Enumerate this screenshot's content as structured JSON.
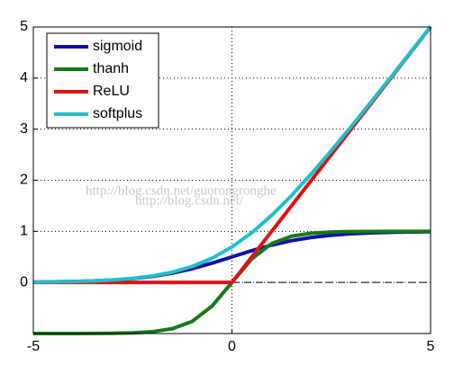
{
  "chart_data": {
    "type": "line",
    "x": [
      -5,
      -4.5,
      -4,
      -3.5,
      -3,
      -2.5,
      -2,
      -1.5,
      -1,
      -0.5,
      0,
      0.5,
      1,
      1.5,
      2,
      2.5,
      3,
      3.5,
      4,
      4.5,
      5
    ],
    "series": [
      {
        "name": "sigmoid",
        "color": "#1010a8",
        "values": [
          0.007,
          0.011,
          0.018,
          0.029,
          0.047,
          0.076,
          0.119,
          0.182,
          0.269,
          0.378,
          0.5,
          0.622,
          0.731,
          0.818,
          0.881,
          0.924,
          0.953,
          0.971,
          0.982,
          0.989,
          0.993
        ]
      },
      {
        "name": "thanh",
        "color": "#157a15",
        "values": [
          -1,
          -1,
          -0.999,
          -0.998,
          -0.995,
          -0.987,
          -0.964,
          -0.905,
          -0.762,
          -0.462,
          0,
          0.462,
          0.762,
          0.905,
          0.964,
          0.987,
          0.995,
          0.998,
          0.999,
          1,
          1
        ]
      },
      {
        "name": "ReLU",
        "color": "#e01010",
        "values": [
          0,
          0,
          0,
          0,
          0,
          0,
          0,
          0,
          0,
          0,
          0,
          0.5,
          1,
          1.5,
          2,
          2.5,
          3,
          3.5,
          4,
          4.5,
          5
        ]
      },
      {
        "name": "softplus",
        "color": "#20c0c8",
        "values": [
          0.007,
          0.011,
          0.018,
          0.03,
          0.049,
          0.079,
          0.127,
          0.201,
          0.313,
          0.474,
          0.693,
          0.974,
          1.313,
          1.701,
          2.127,
          2.579,
          3.049,
          3.53,
          4.018,
          4.511,
          5.007
        ]
      }
    ],
    "xlim": [
      -5,
      5
    ],
    "ylim": [
      -1,
      5
    ],
    "xticks": [
      -5,
      0,
      5
    ],
    "yticks": [
      0,
      1,
      2,
      3,
      4,
      5
    ],
    "grid": true,
    "hline": 0,
    "legend": "upper left",
    "watermarks": [
      "http://blog.csdn.net/guorongronghe",
      "http://blog.csdn.net/"
    ]
  }
}
